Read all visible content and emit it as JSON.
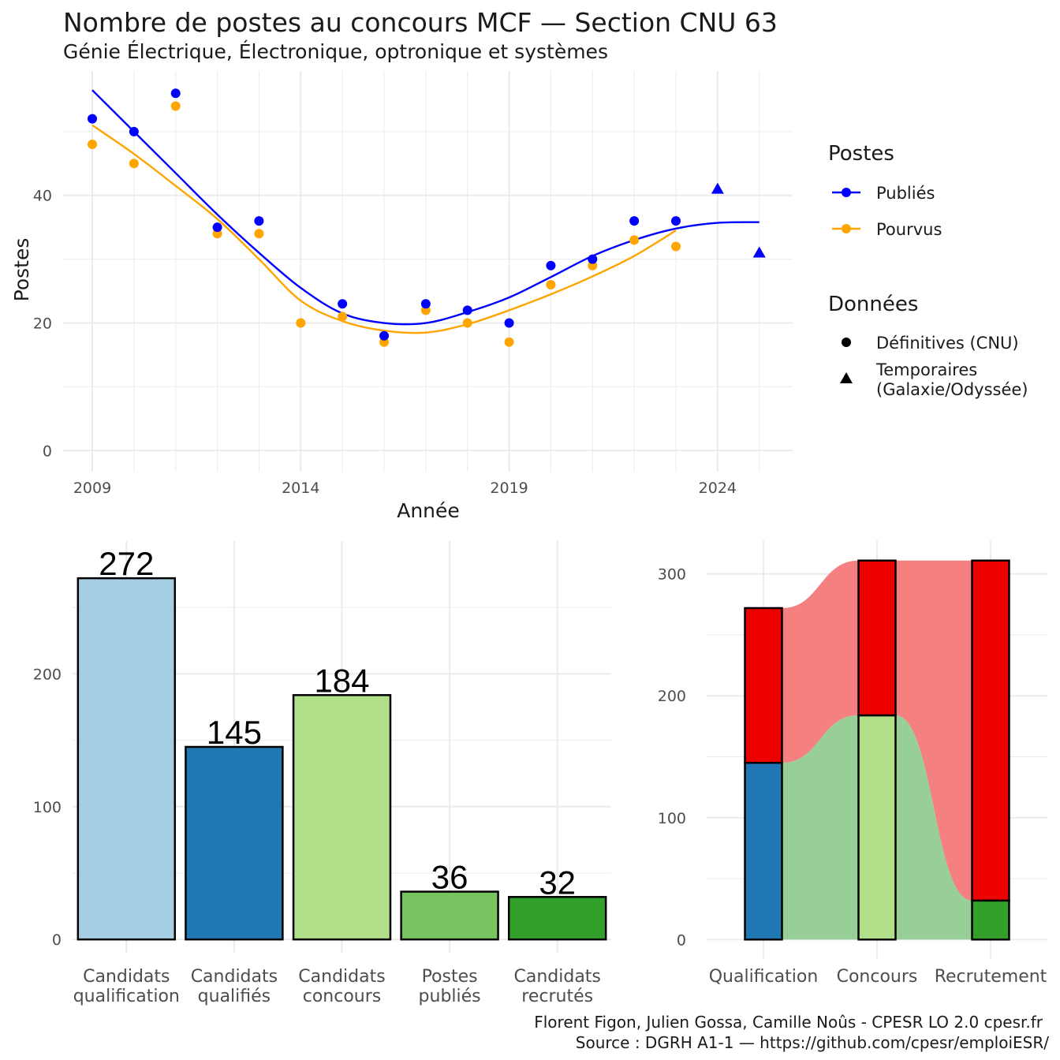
{
  "title": "Nombre de postes au concours MCF —  Section CNU 63",
  "subtitle": "Génie Électrique, Électronique, optronique et systèmes",
  "caption_line1": "Florent Figon, Julien Gossa, Camille Noûs - CPESR LO 2.0 cpesr.fr",
  "caption_line2": "Source : DGRH A1-1 — https://github.com/cpesr/emploiESR/",
  "legend": {
    "postes_title": "Postes",
    "publies_label": "Publiés",
    "pourvus_label": "Pourvus",
    "donnees_title": "Données",
    "definitives_label": "Définitives (CNU)",
    "temporaires_label_1": "Temporaires",
    "temporaires_label_2": "(Galaxie/Odyssée)"
  },
  "colors": {
    "publies": "#0000ff",
    "pourvus": "#ffa500",
    "red": "#ee0000",
    "red_flow": "#f48080",
    "green_flow": "#98cf98"
  },
  "chart_data": [
    {
      "type": "scatter",
      "xlabel": "Année",
      "ylabel": "Postes",
      "xlim": [
        2008.3,
        2025.8
      ],
      "ylim": [
        -3.3,
        59.5
      ],
      "x_ticks": [
        2009,
        2014,
        2019,
        2024
      ],
      "y_ticks": [
        0,
        20,
        40
      ],
      "grid": true,
      "legend_position": "right",
      "series": [
        {
          "name": "Publiés",
          "color": "#0000ff",
          "points": [
            {
              "x": 2009,
              "y": 52
            },
            {
              "x": 2010,
              "y": 50
            },
            {
              "x": 2011,
              "y": 56
            },
            {
              "x": 2012,
              "y": 35
            },
            {
              "x": 2013,
              "y": 36
            },
            {
              "x": 2015,
              "y": 23
            },
            {
              "x": 2016,
              "y": 18
            },
            {
              "x": 2017,
              "y": 23
            },
            {
              "x": 2018,
              "y": 22
            },
            {
              "x": 2019,
              "y": 20
            },
            {
              "x": 2020,
              "y": 29
            },
            {
              "x": 2021,
              "y": 30
            },
            {
              "x": 2022,
              "y": 36
            },
            {
              "x": 2023,
              "y": 36
            }
          ],
          "temporary_points": [
            {
              "x": 2024,
              "y": 41
            },
            {
              "x": 2025,
              "y": 31
            }
          ],
          "smooth": [
            {
              "x": 2009,
              "y": 56.5
            },
            {
              "x": 2010,
              "y": 50
            },
            {
              "x": 2011,
              "y": 43.5
            },
            {
              "x": 2012,
              "y": 37
            },
            {
              "x": 2013,
              "y": 31
            },
            {
              "x": 2014,
              "y": 25.5
            },
            {
              "x": 2015,
              "y": 21.5
            },
            {
              "x": 2016,
              "y": 20
            },
            {
              "x": 2017,
              "y": 20
            },
            {
              "x": 2018,
              "y": 21.7
            },
            {
              "x": 2019,
              "y": 24
            },
            {
              "x": 2020,
              "y": 27.2
            },
            {
              "x": 2021,
              "y": 30.5
            },
            {
              "x": 2022,
              "y": 33
            },
            {
              "x": 2023,
              "y": 34.8
            },
            {
              "x": 2024,
              "y": 35.7
            },
            {
              "x": 2025,
              "y": 35.8
            }
          ]
        },
        {
          "name": "Pourvus",
          "color": "#ffa500",
          "points": [
            {
              "x": 2009,
              "y": 48
            },
            {
              "x": 2010,
              "y": 45
            },
            {
              "x": 2011,
              "y": 54
            },
            {
              "x": 2012,
              "y": 34
            },
            {
              "x": 2013,
              "y": 34
            },
            {
              "x": 2014,
              "y": 20
            },
            {
              "x": 2015,
              "y": 21
            },
            {
              "x": 2016,
              "y": 17
            },
            {
              "x": 2017,
              "y": 22
            },
            {
              "x": 2018,
              "y": 20
            },
            {
              "x": 2019,
              "y": 17
            },
            {
              "x": 2020,
              "y": 26
            },
            {
              "x": 2021,
              "y": 29
            },
            {
              "x": 2022,
              "y": 33
            },
            {
              "x": 2023,
              "y": 32
            }
          ],
          "smooth": [
            {
              "x": 2009,
              "y": 51
            },
            {
              "x": 2010,
              "y": 46.5
            },
            {
              "x": 2011,
              "y": 41.5
            },
            {
              "x": 2012,
              "y": 36.3
            },
            {
              "x": 2013,
              "y": 30
            },
            {
              "x": 2014,
              "y": 23.5
            },
            {
              "x": 2015,
              "y": 20.3
            },
            {
              "x": 2016,
              "y": 18.8
            },
            {
              "x": 2017,
              "y": 18.5
            },
            {
              "x": 2018,
              "y": 19.8
            },
            {
              "x": 2019,
              "y": 22
            },
            {
              "x": 2020,
              "y": 24.5
            },
            {
              "x": 2021,
              "y": 27.3
            },
            {
              "x": 2022,
              "y": 30.5
            },
            {
              "x": 2023,
              "y": 34.5
            }
          ]
        }
      ]
    },
    {
      "type": "bar",
      "categories": [
        "Candidats\nqualification",
        "Candidats\nqualifiés",
        "Candidats\nconcours",
        "Postes\npubliés",
        "Candidats\nrecrutés"
      ],
      "values": [
        272,
        145,
        184,
        36,
        32
      ],
      "colors": [
        "#a6cee3",
        "#1f78b4",
        "#b2df8a",
        "#77c35f",
        "#33a02c"
      ],
      "ylim": [
        -10,
        300
      ],
      "y_ticks": [
        0,
        100,
        200
      ],
      "grid": true
    },
    {
      "type": "bar",
      "stacked": true,
      "categories": [
        "Qualification",
        "Concours",
        "Recrutement"
      ],
      "series": [
        {
          "color": "#1f78b4",
          "values": [
            145,
            0,
            0
          ]
        },
        {
          "color": "#b2df8a",
          "values": [
            0,
            184,
            0
          ]
        },
        {
          "color": "#33a02c",
          "values": [
            0,
            0,
            32
          ]
        },
        {
          "color": "#ee0000",
          "values": [
            127,
            127,
            279
          ]
        }
      ],
      "totals": [
        272,
        311,
        311
      ],
      "ylim": [
        -16,
        327
      ],
      "y_ticks": [
        0,
        100,
        200,
        300
      ],
      "grid": true
    }
  ]
}
